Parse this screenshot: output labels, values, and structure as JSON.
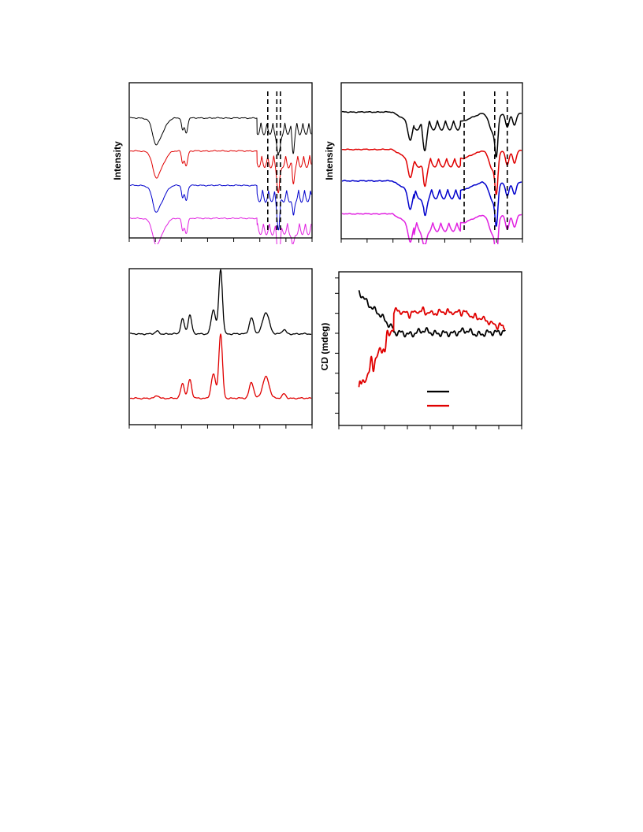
{
  "chart_data": [
    {
      "type": "line",
      "panel": "top-left",
      "title": "",
      "xlabel": "",
      "ylabel": "Intensity",
      "series": [
        {
          "color": "#000000",
          "pattern": "ir1",
          "offset": 0.78
        },
        {
          "color": "#e00000",
          "pattern": "ir1",
          "offset": 0.56
        },
        {
          "color": "#0000cc",
          "pattern": "ir1",
          "offset": 0.33
        },
        {
          "color": "#e020e0",
          "pattern": "ir1",
          "offset": 0.11
        }
      ],
      "reference_lines_fraction": [
        0.76,
        0.81,
        0.83
      ]
    },
    {
      "type": "line",
      "panel": "top-right",
      "title": "",
      "xlabel": "",
      "ylabel": "Intensity",
      "series": [
        {
          "color": "#000000",
          "pattern": "ir2",
          "offset": 0.82
        },
        {
          "color": "#e00000",
          "pattern": "ir2",
          "offset": 0.57
        },
        {
          "color": "#0000cc",
          "pattern": "ir2",
          "offset": 0.36
        },
        {
          "color": "#e020e0",
          "pattern": "ir2",
          "offset": 0.14
        }
      ],
      "reference_lines_fraction": [
        0.68,
        0.85,
        0.92
      ]
    },
    {
      "type": "line",
      "panel": "bottom-left",
      "title": "",
      "xlabel": "",
      "ylabel": "",
      "series": [
        {
          "color": "#000000",
          "pattern": "xrd",
          "offset": 0.58
        },
        {
          "color": "#e00000",
          "pattern": "xrd",
          "offset": 0.15
        }
      ],
      "peaks_fraction": [
        0.15,
        0.29,
        0.33,
        0.46,
        0.5,
        0.67,
        0.75,
        0.85
      ]
    },
    {
      "type": "line",
      "panel": "bottom-right",
      "title": "",
      "xlabel": "",
      "ylabel": "CD (mdeg)",
      "legend": {
        "position": "bottom-right",
        "entries": [
          {
            "color": "#000000"
          },
          {
            "color": "#e00000"
          }
        ]
      },
      "series": [
        {
          "color": "#000000",
          "pattern": "cd-black"
        },
        {
          "color": "#e00000",
          "pattern": "cd-red"
        }
      ]
    }
  ]
}
